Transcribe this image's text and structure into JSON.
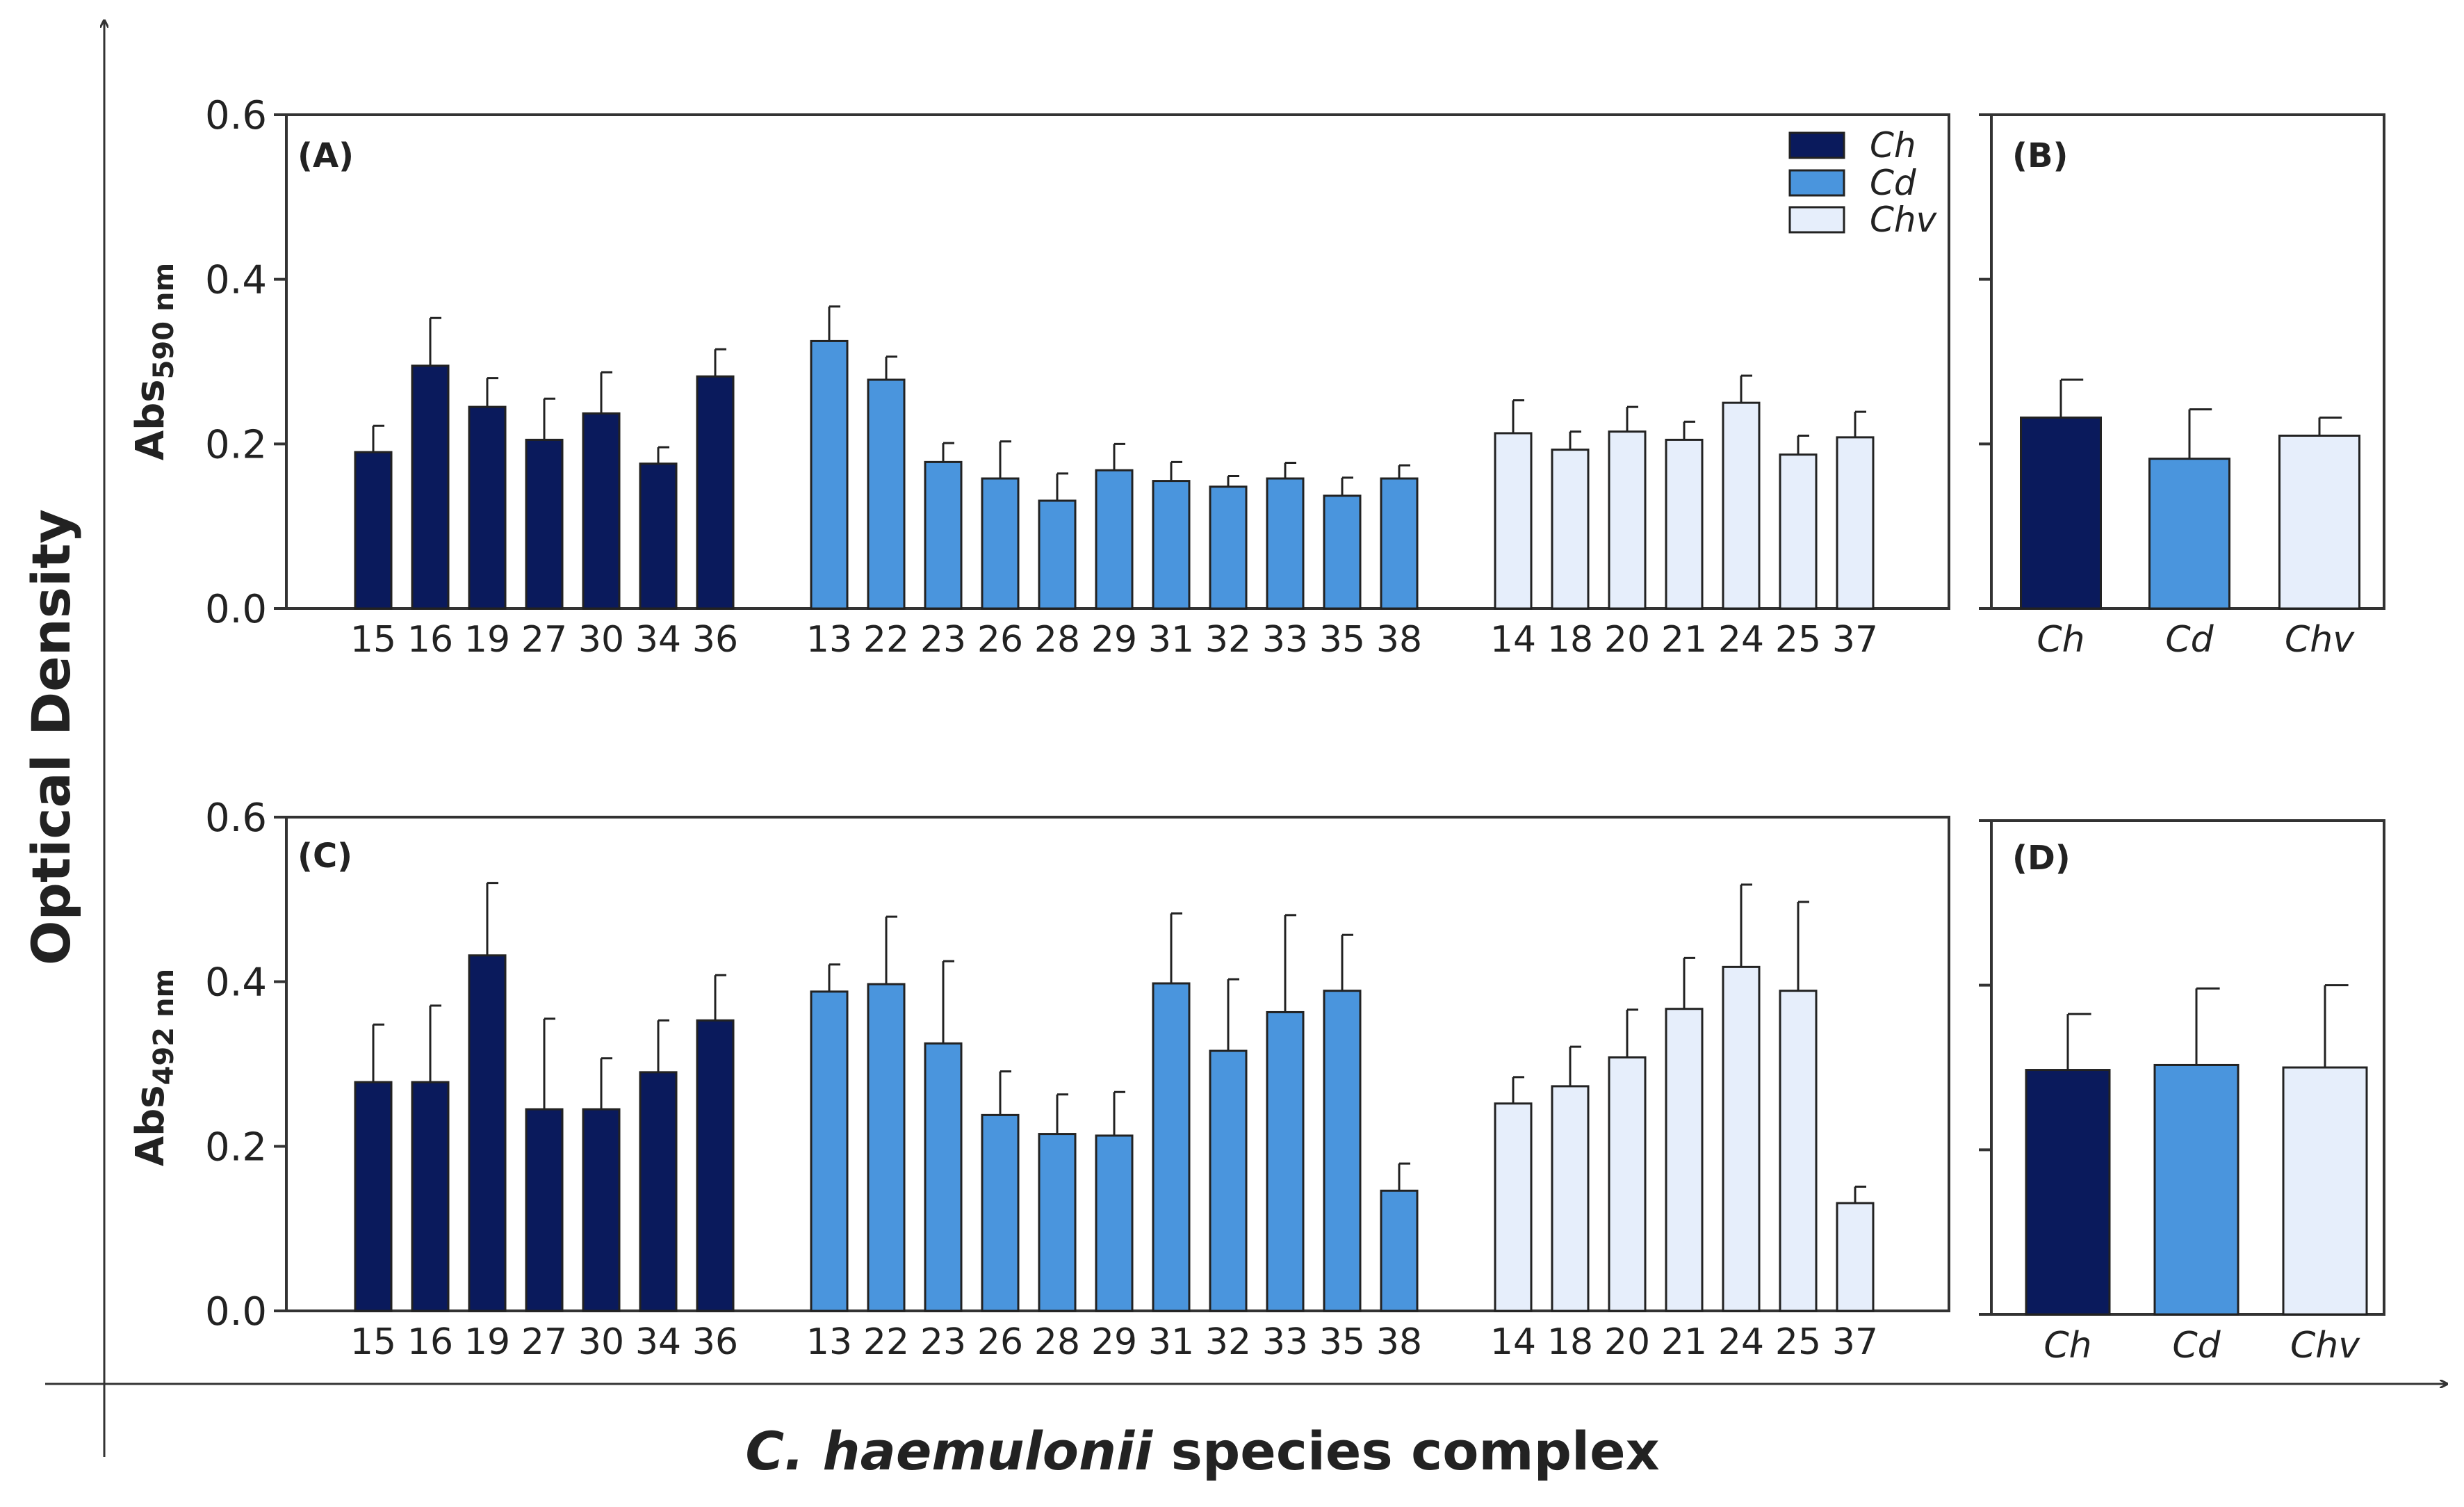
{
  "figure": {
    "y_axis_title": "Optical Density",
    "x_axis_title_italic": "C. haemulonii",
    "x_axis_title_rest": " species complex"
  },
  "colors": {
    "Ch": "#0a1a5c",
    "Cd": "#4a95dd",
    "Chv": "#e6eefb",
    "frame": "#333333",
    "text": "#222222"
  },
  "legend": {
    "items": [
      {
        "key": "Ch",
        "label": "Ch"
      },
      {
        "key": "Cd",
        "label": "Cd"
      },
      {
        "key": "Chv",
        "label": "Chv"
      }
    ]
  },
  "chart_data": [
    {
      "type": "bar",
      "panel": "(A)",
      "ylabel_main": "Abs",
      "ylabel_sub": "590 nm",
      "ylim": [
        0,
        0.6
      ],
      "yticks": [
        "0.0",
        "0.2",
        "0.4",
        "0.6"
      ],
      "groups": [
        {
          "series": "Ch",
          "categories": [
            "15",
            "16",
            "19",
            "27",
            "30",
            "34",
            "36"
          ],
          "values": [
            0.19,
            0.295,
            0.245,
            0.205,
            0.237,
            0.176,
            0.282
          ],
          "errors": [
            0.032,
            0.058,
            0.035,
            0.05,
            0.05,
            0.02,
            0.033
          ]
        },
        {
          "series": "Cd",
          "categories": [
            "13",
            "22",
            "23",
            "26",
            "28",
            "29",
            "31",
            "32",
            "33",
            "35",
            "38"
          ],
          "values": [
            0.325,
            0.278,
            0.178,
            0.158,
            0.131,
            0.168,
            0.155,
            0.148,
            0.158,
            0.137,
            0.158
          ],
          "errors": [
            0.042,
            0.028,
            0.023,
            0.045,
            0.033,
            0.032,
            0.023,
            0.013,
            0.019,
            0.022,
            0.016
          ]
        },
        {
          "series": "Chv",
          "categories": [
            "14",
            "18",
            "20",
            "21",
            "24",
            "25",
            "37"
          ],
          "values": [
            0.213,
            0.193,
            0.215,
            0.205,
            0.25,
            0.187,
            0.208
          ],
          "errors": [
            0.04,
            0.022,
            0.03,
            0.022,
            0.033,
            0.023,
            0.031
          ]
        }
      ]
    },
    {
      "type": "bar",
      "panel": "(B)",
      "ylim": [
        0,
        0.6
      ],
      "categories": [
        "Ch",
        "Cd",
        "Chv"
      ],
      "values": [
        0.232,
        0.182,
        0.21
      ],
      "errors": [
        0.046,
        0.06,
        0.022
      ]
    },
    {
      "type": "bar",
      "panel": "(C)",
      "ylabel_main": "Abs",
      "ylabel_sub": "492 nm",
      "ylim": [
        0,
        0.6
      ],
      "yticks": [
        "0.0",
        "0.2",
        "0.4",
        "0.6"
      ],
      "groups": [
        {
          "series": "Ch",
          "categories": [
            "15",
            "16",
            "19",
            "27",
            "30",
            "34",
            "36"
          ],
          "values": [
            0.278,
            0.278,
            0.432,
            0.245,
            0.245,
            0.29,
            0.353
          ],
          "errors": [
            0.07,
            0.093,
            0.088,
            0.11,
            0.062,
            0.063,
            0.055
          ]
        },
        {
          "series": "Cd",
          "categories": [
            "13",
            "22",
            "23",
            "26",
            "28",
            "29",
            "31",
            "32",
            "33",
            "35",
            "38"
          ],
          "values": [
            0.388,
            0.397,
            0.325,
            0.238,
            0.215,
            0.213,
            0.398,
            0.316,
            0.363,
            0.389,
            0.146
          ],
          "errors": [
            0.033,
            0.082,
            0.1,
            0.053,
            0.048,
            0.053,
            0.085,
            0.087,
            0.118,
            0.068,
            0.033
          ]
        },
        {
          "series": "Chv",
          "categories": [
            "14",
            "18",
            "20",
            "21",
            "24",
            "25",
            "37"
          ],
          "values": [
            0.252,
            0.273,
            0.308,
            0.367,
            0.418,
            0.389,
            0.131
          ],
          "errors": [
            0.032,
            0.048,
            0.058,
            0.062,
            0.1,
            0.108,
            0.02
          ]
        }
      ]
    },
    {
      "type": "bar",
      "panel": "(D)",
      "ylim": [
        0,
        0.6
      ],
      "categories": [
        "Ch",
        "Cd",
        "Chv"
      ],
      "values": [
        0.297,
        0.303,
        0.3
      ],
      "errors": [
        0.068,
        0.093,
        0.1
      ]
    }
  ]
}
